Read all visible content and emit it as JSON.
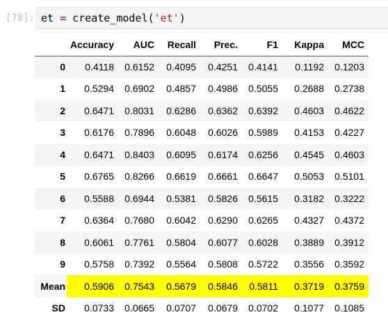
{
  "cell": {
    "prompt": "[78]:",
    "code_var": "et",
    "code_op": "=",
    "code_func": "create_model(",
    "code_arg": "'et'",
    "code_close": ")"
  },
  "table": {
    "columns": [
      "",
      "Accuracy",
      "AUC",
      "Recall",
      "Prec.",
      "F1",
      "Kappa",
      "MCC"
    ],
    "rows": [
      {
        "index": "0",
        "values": [
          "0.4118",
          "0.6152",
          "0.4095",
          "0.4251",
          "0.4141",
          "0.1192",
          "0.1203"
        ]
      },
      {
        "index": "1",
        "values": [
          "0.5294",
          "0.6902",
          "0.4857",
          "0.4986",
          "0.5055",
          "0.2688",
          "0.2738"
        ]
      },
      {
        "index": "2",
        "values": [
          "0.6471",
          "0.8031",
          "0.6286",
          "0.6362",
          "0.6392",
          "0.4603",
          "0.4622"
        ]
      },
      {
        "index": "3",
        "values": [
          "0.6176",
          "0.7896",
          "0.6048",
          "0.6026",
          "0.5989",
          "0.4153",
          "0.4227"
        ]
      },
      {
        "index": "4",
        "values": [
          "0.6471",
          "0.8403",
          "0.6095",
          "0.6174",
          "0.6256",
          "0.4545",
          "0.4603"
        ]
      },
      {
        "index": "5",
        "values": [
          "0.6765",
          "0.8266",
          "0.6619",
          "0.6661",
          "0.6647",
          "0.5053",
          "0.5101"
        ]
      },
      {
        "index": "6",
        "values": [
          "0.5588",
          "0.6944",
          "0.5381",
          "0.5826",
          "0.5615",
          "0.3182",
          "0.3222"
        ]
      },
      {
        "index": "7",
        "values": [
          "0.6364",
          "0.7680",
          "0.6042",
          "0.6290",
          "0.6265",
          "0.4327",
          "0.4372"
        ]
      },
      {
        "index": "8",
        "values": [
          "0.6061",
          "0.7761",
          "0.5804",
          "0.6077",
          "0.6028",
          "0.3889",
          "0.3912"
        ]
      },
      {
        "index": "9",
        "values": [
          "0.5758",
          "0.7392",
          "0.5564",
          "0.5808",
          "0.5722",
          "0.3556",
          "0.3592"
        ]
      },
      {
        "index": "Mean",
        "values": [
          "0.5906",
          "0.7543",
          "0.5679",
          "0.5846",
          "0.5811",
          "0.3719",
          "0.3759"
        ]
      },
      {
        "index": "SD",
        "values": [
          "0.0733",
          "0.0665",
          "0.0707",
          "0.0679",
          "0.0702",
          "0.1077",
          "0.1085"
        ]
      }
    ]
  },
  "colors": {
    "highlight": "#ffff00",
    "stripe": "#f5f5f5",
    "keyword": "#a626a4",
    "string": "#ba2121"
  }
}
